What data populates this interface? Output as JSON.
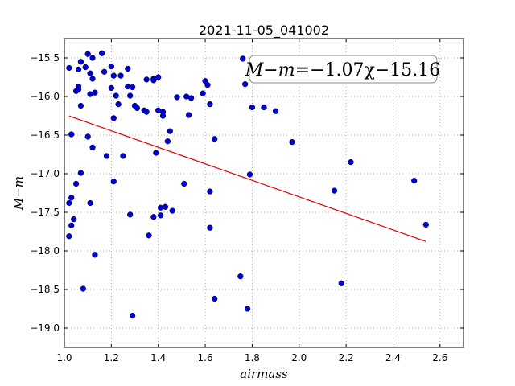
{
  "chart_data": {
    "type": "scatter",
    "title": "2021-11-05_041002",
    "xlabel": "airmass",
    "ylabel": "M−m",
    "xlim": [
      1.0,
      2.7
    ],
    "ylim": [
      -19.25,
      -15.25
    ],
    "y_inverted": true,
    "x_ticks": [
      1.0,
      1.2,
      1.4,
      1.6,
      1.8,
      2.0,
      2.2,
      2.4,
      2.6
    ],
    "x_tick_labels": [
      "1.0",
      "1.2",
      "1.4",
      "1.6",
      "1.8",
      "2.0",
      "2.2",
      "2.4",
      "2.6"
    ],
    "y_ticks": [
      -15.5,
      -16.0,
      -16.5,
      -17.0,
      -17.5,
      -18.0,
      -18.5,
      -19.0
    ],
    "y_tick_labels": [
      "−15.5",
      "−16.0",
      "−16.5",
      "−17.0",
      "−17.5",
      "−18.0",
      "−18.5",
      "−19.0"
    ],
    "grid": true,
    "marker_color": "#0000cc",
    "fit_color": "#dd0000",
    "fit": {
      "slope": -1.07,
      "intercept": -15.16,
      "x_range": [
        1.02,
        2.54
      ],
      "label_lhs": "M−m",
      "label_rhs": "=−1.07χ−15.16",
      "label_position": "top-right"
    },
    "points": [
      {
        "x": 1.02,
        "y": -15.63
      },
      {
        "x": 1.06,
        "y": -15.65
      },
      {
        "x": 1.07,
        "y": -15.55
      },
      {
        "x": 1.09,
        "y": -15.62
      },
      {
        "x": 1.1,
        "y": -15.45
      },
      {
        "x": 1.11,
        "y": -15.7
      },
      {
        "x": 1.12,
        "y": -15.5
      },
      {
        "x": 1.16,
        "y": -15.44
      },
      {
        "x": 1.17,
        "y": -15.68
      },
      {
        "x": 1.2,
        "y": -15.61
      },
      {
        "x": 1.21,
        "y": -15.73
      },
      {
        "x": 1.24,
        "y": -15.73
      },
      {
        "x": 1.27,
        "y": -15.64
      },
      {
        "x": 1.12,
        "y": -15.77
      },
      {
        "x": 1.06,
        "y": -15.87
      },
      {
        "x": 1.05,
        "y": -15.93
      },
      {
        "x": 1.06,
        "y": -15.91
      },
      {
        "x": 1.11,
        "y": -15.97
      },
      {
        "x": 1.13,
        "y": -15.95
      },
      {
        "x": 1.2,
        "y": -15.89
      },
      {
        "x": 1.27,
        "y": -15.87
      },
      {
        "x": 1.29,
        "y": -15.88
      },
      {
        "x": 1.22,
        "y": -15.99
      },
      {
        "x": 1.28,
        "y": -15.99
      },
      {
        "x": 1.07,
        "y": -16.12
      },
      {
        "x": 1.23,
        "y": -16.1
      },
      {
        "x": 1.3,
        "y": -16.12
      },
      {
        "x": 1.31,
        "y": -16.15
      },
      {
        "x": 1.34,
        "y": -16.18
      },
      {
        "x": 1.35,
        "y": -16.2
      },
      {
        "x": 1.35,
        "y": -15.78
      },
      {
        "x": 1.38,
        "y": -15.77
      },
      {
        "x": 1.38,
        "y": -15.79
      },
      {
        "x": 1.4,
        "y": -15.75
      },
      {
        "x": 1.4,
        "y": -16.18
      },
      {
        "x": 1.42,
        "y": -16.2
      },
      {
        "x": 1.42,
        "y": -16.25
      },
      {
        "x": 1.48,
        "y": -16.01
      },
      {
        "x": 1.52,
        "y": -16.0
      },
      {
        "x": 1.54,
        "y": -16.02
      },
      {
        "x": 1.53,
        "y": -16.24
      },
      {
        "x": 1.59,
        "y": -15.96
      },
      {
        "x": 1.6,
        "y": -15.8
      },
      {
        "x": 1.61,
        "y": -15.85
      },
      {
        "x": 1.62,
        "y": -16.1
      },
      {
        "x": 1.21,
        "y": -16.28
      },
      {
        "x": 1.45,
        "y": -16.45
      },
      {
        "x": 1.44,
        "y": -16.58
      },
      {
        "x": 1.64,
        "y": -16.55
      },
      {
        "x": 1.76,
        "y": -15.51
      },
      {
        "x": 1.77,
        "y": -15.84
      },
      {
        "x": 1.8,
        "y": -16.14
      },
      {
        "x": 1.85,
        "y": -16.14
      },
      {
        "x": 1.9,
        "y": -16.19
      },
      {
        "x": 1.03,
        "y": -16.49
      },
      {
        "x": 1.1,
        "y": -16.52
      },
      {
        "x": 1.12,
        "y": -16.66
      },
      {
        "x": 1.18,
        "y": -16.77
      },
      {
        "x": 1.25,
        "y": -16.77
      },
      {
        "x": 1.39,
        "y": -16.73
      },
      {
        "x": 1.97,
        "y": -16.59
      },
      {
        "x": 2.22,
        "y": -16.85
      },
      {
        "x": 1.07,
        "y": -16.99
      },
      {
        "x": 1.05,
        "y": -17.13
      },
      {
        "x": 1.21,
        "y": -17.1
      },
      {
        "x": 1.51,
        "y": -17.13
      },
      {
        "x": 1.62,
        "y": -17.23
      },
      {
        "x": 1.79,
        "y": -17.01
      },
      {
        "x": 2.15,
        "y": -17.22
      },
      {
        "x": 2.49,
        "y": -17.09
      },
      {
        "x": 1.03,
        "y": -17.31
      },
      {
        "x": 1.02,
        "y": -17.38
      },
      {
        "x": 1.11,
        "y": -17.38
      },
      {
        "x": 1.41,
        "y": -17.44
      },
      {
        "x": 1.43,
        "y": -17.43
      },
      {
        "x": 1.46,
        "y": -17.48
      },
      {
        "x": 1.28,
        "y": -17.53
      },
      {
        "x": 1.38,
        "y": -17.56
      },
      {
        "x": 1.41,
        "y": -17.54
      },
      {
        "x": 1.04,
        "y": -17.59
      },
      {
        "x": 1.03,
        "y": -17.67
      },
      {
        "x": 1.02,
        "y": -17.81
      },
      {
        "x": 1.36,
        "y": -17.8
      },
      {
        "x": 1.62,
        "y": -17.7
      },
      {
        "x": 2.54,
        "y": -17.66
      },
      {
        "x": 1.13,
        "y": -18.05
      },
      {
        "x": 1.75,
        "y": -18.33
      },
      {
        "x": 1.08,
        "y": -18.49
      },
      {
        "x": 2.18,
        "y": -18.42
      },
      {
        "x": 1.64,
        "y": -18.62
      },
      {
        "x": 1.78,
        "y": -18.75
      },
      {
        "x": 1.29,
        "y": -18.84
      }
    ]
  }
}
